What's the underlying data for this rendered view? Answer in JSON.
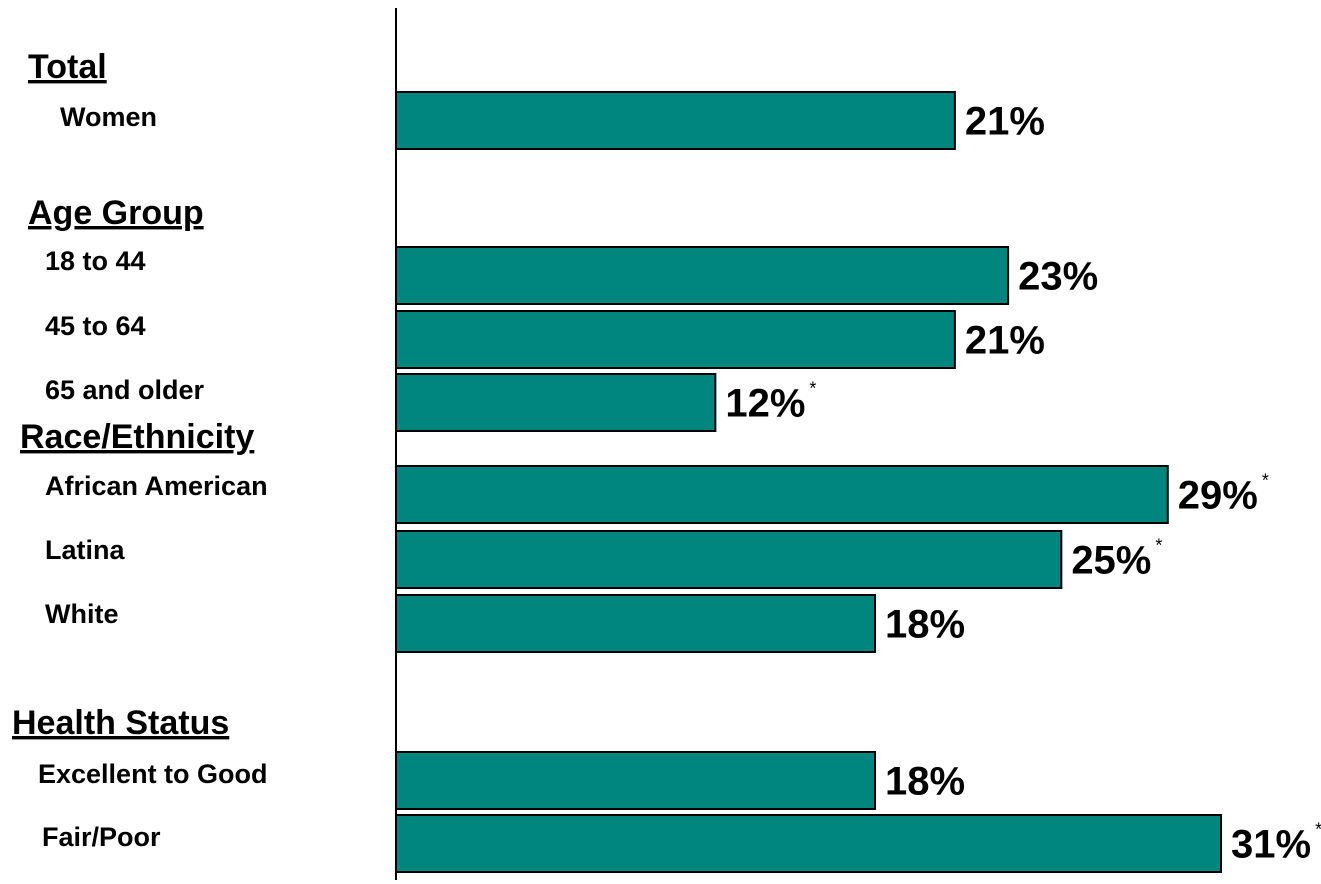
{
  "chart_data": {
    "type": "bar",
    "orientation": "horizontal",
    "bar_color": "#00857F",
    "bar_stroke": "#000000",
    "xlim": [
      0,
      31
    ],
    "groups": [
      {
        "label": "Total",
        "categories": [
          "Women"
        ]
      },
      {
        "label": "Age Group",
        "categories": [
          "18 to 44",
          "45 to 64",
          "65 and older"
        ]
      },
      {
        "label": "Race/Ethnicity",
        "categories": [
          "African American",
          "Latina",
          "White"
        ]
      },
      {
        "label": "Health Status",
        "categories": [
          "Excellent to Good",
          "Fair/Poor"
        ]
      }
    ],
    "categories": [
      "Women",
      "18 to 44",
      "45 to 64",
      "65 and older",
      "African American",
      "Latina",
      "White",
      "Excellent to Good",
      "Fair/Poor"
    ],
    "values": [
      21,
      23,
      21,
      12,
      29,
      25,
      18,
      18,
      31
    ],
    "value_labels": [
      "21%",
      "23%",
      "21%",
      "12%",
      "29%",
      "25%",
      "18%",
      "18%",
      "31%"
    ],
    "significance_marks": [
      "",
      "",
      "",
      "*",
      "*",
      "*",
      "",
      "",
      "*"
    ]
  }
}
